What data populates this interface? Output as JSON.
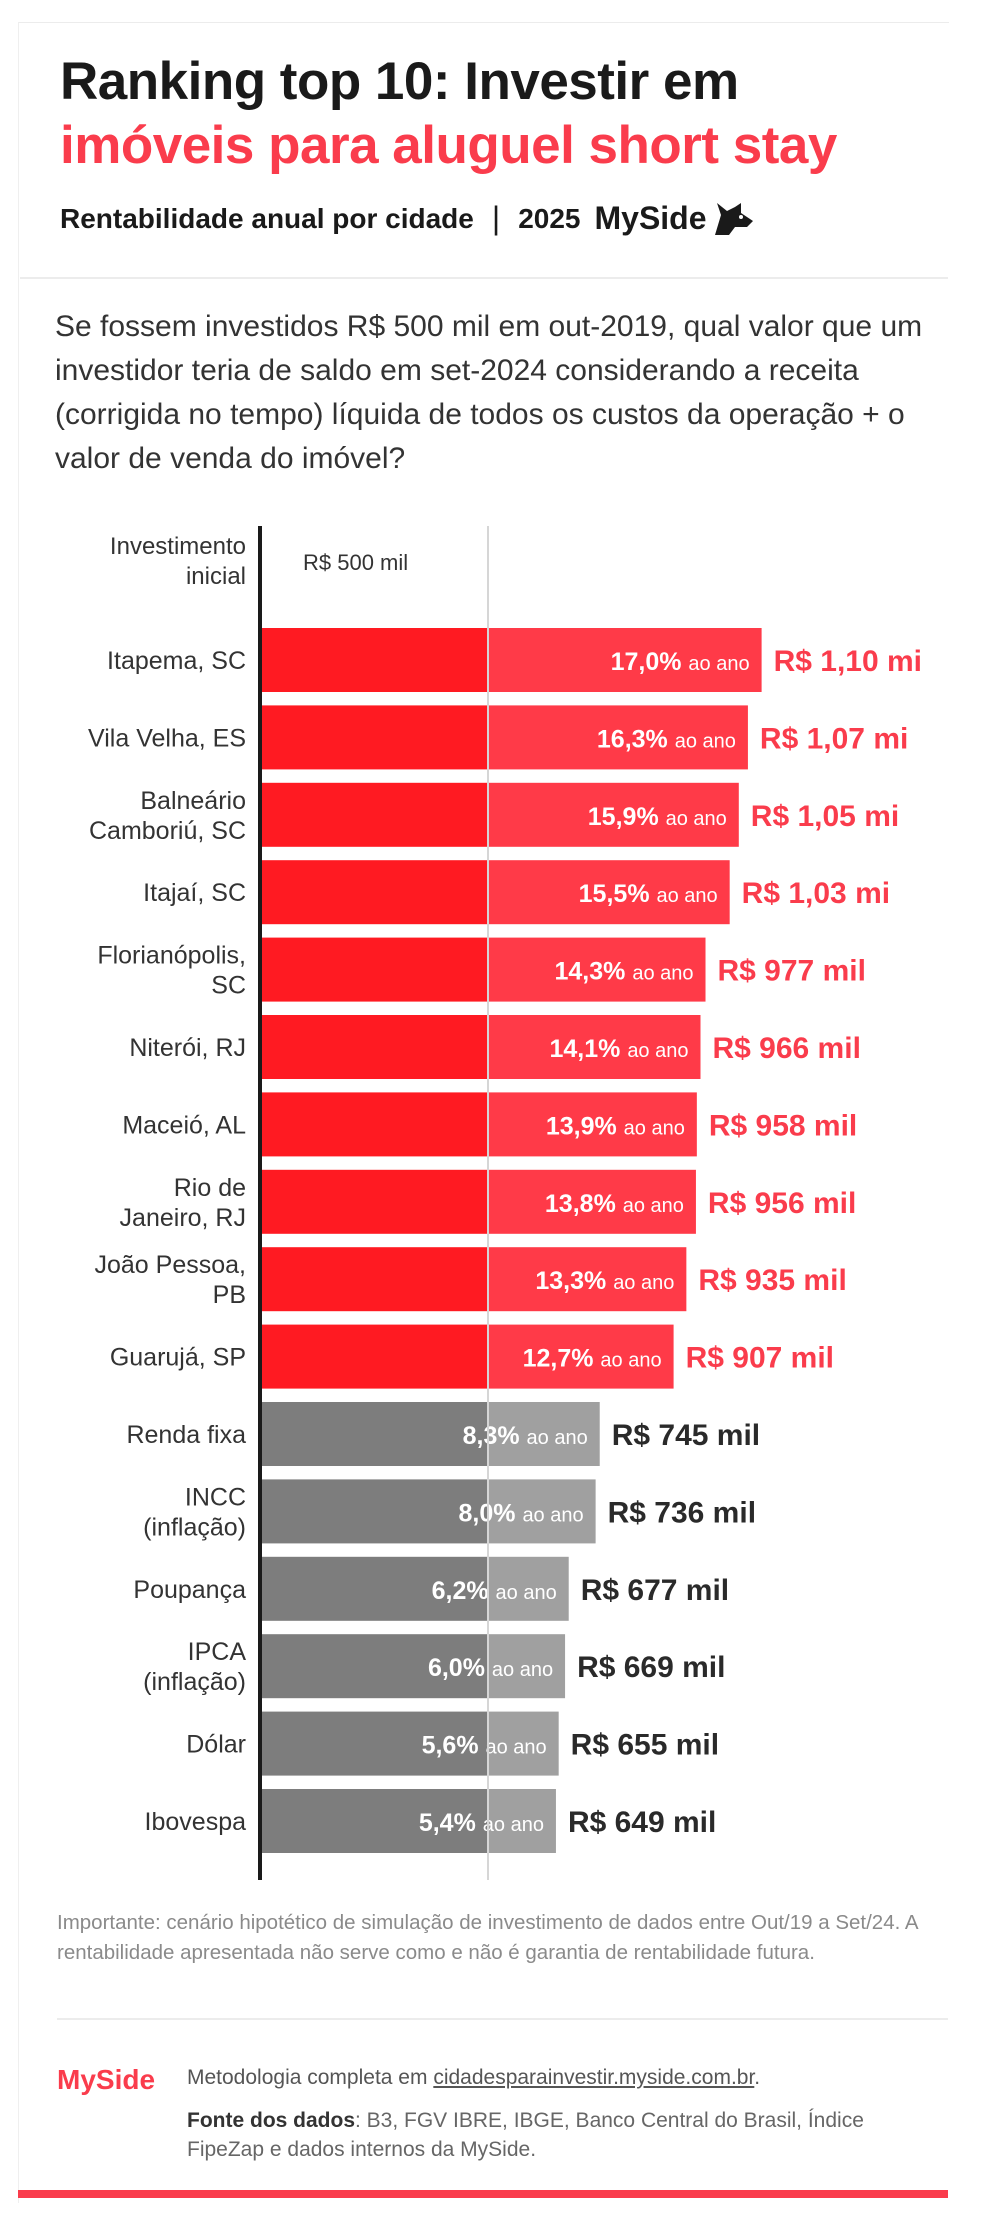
{
  "header": {
    "title_line1": "Ranking top 10: Investir em",
    "title_line2": "imóveis para aluguel short stay",
    "subtitle": "Rentabilidade anual por cidade",
    "year": "2025",
    "brand": "MySide"
  },
  "question": "Se fossem investidos R$ 500 mil em out-2019, qual valor que um investidor teria de saldo em set-2024 considerando a receita (corrigida no tempo) líquida de todos os custos da operação + o valor de venda do imóvel?",
  "colors": {
    "accent": "#fa3c4c",
    "city_bar": "#ff1a22",
    "city_bar_light": "#ff3a48",
    "benchmark_bar": "#7d7d7d",
    "benchmark_bar_light": "#a0a0a0",
    "axis": "#1a1a1a"
  },
  "chart_data": {
    "type": "bar",
    "orientation": "horizontal",
    "initial_investment": {
      "label": "Investimento inicial",
      "value_label": "R$ 500 mil",
      "value": 500
    },
    "unit_suffix": "ao ano",
    "categories": [
      "Itapema, SC",
      "Vila Velha, ES",
      "Balneário Camboriú, SC",
      "Itajaí, SC",
      "Florianópolis, SC",
      "Niterói, RJ",
      "Maceió, AL",
      "Rio de Janeiro, RJ",
      "João Pessoa, PB",
      "Guarujá, SP",
      "Renda fixa",
      "INCC (inflação)",
      "Poupança",
      "IPCA (inflação)",
      "Dólar",
      "Ibovespa"
    ],
    "label_lines": [
      [
        "Itapema, SC"
      ],
      [
        "Vila Velha, ES"
      ],
      [
        "Balneário",
        "Camboriú, SC"
      ],
      [
        "Itajaí, SC"
      ],
      [
        "Florianópolis,",
        "SC"
      ],
      [
        "Niterói, RJ"
      ],
      [
        "Maceió, AL"
      ],
      [
        "Rio de",
        "Janeiro, RJ"
      ],
      [
        "João Pessoa,",
        "PB"
      ],
      [
        "Guarujá, SP"
      ],
      [
        "Renda fixa"
      ],
      [
        "INCC",
        "(inflação)"
      ],
      [
        "Poupança"
      ],
      [
        "IPCA",
        "(inflação)"
      ],
      [
        "Dólar"
      ],
      [
        "Ibovespa"
      ]
    ],
    "values": [
      1100,
      1070,
      1050,
      1030,
      977,
      966,
      958,
      956,
      935,
      907,
      745,
      736,
      677,
      669,
      655,
      649
    ],
    "value_labels": [
      "R$ 1,10 mi",
      "R$ 1,07 mi",
      "R$ 1,05 mi",
      "R$ 1,03 mi",
      "R$ 977 mil",
      "R$ 966 mil",
      "R$ 958 mil",
      "R$ 956 mil",
      "R$ 935 mil",
      "R$ 907 mil",
      "R$ 745 mil",
      "R$ 736 mil",
      "R$ 677 mil",
      "R$ 669 mil",
      "R$ 655 mil",
      "R$ 649 mil"
    ],
    "rates": [
      "17,0%",
      "16,3%",
      "15,9%",
      "15,5%",
      "14,3%",
      "14,1%",
      "13,9%",
      "13,8%",
      "13,3%",
      "12,7%",
      "8,3%",
      "8,0%",
      "6,2%",
      "6,0%",
      "5,6%",
      "5,4%"
    ],
    "group": [
      "city",
      "city",
      "city",
      "city",
      "city",
      "city",
      "city",
      "city",
      "city",
      "city",
      "benchmark",
      "benchmark",
      "benchmark",
      "benchmark",
      "benchmark",
      "benchmark"
    ],
    "xlim": [
      0,
      1350
    ],
    "grid": false
  },
  "footer": {
    "note": "Importante: cenário hipotético de simulação de investimento de dados entre Out/19 a Set/24. A rentabilidade apresentada não serve como e não é garantia de rentabilidade futura.",
    "brand": "MySide",
    "method_prefix": "Metodologia completa em",
    "method_link": "cidadesparainvestir.myside.com.br",
    "method_suffix": ".",
    "sources_label": "Fonte dos dados",
    "sources_text": ": B3, FGV IBRE, IBGE, Banco Central do Brasil, Índice FipeZap e dados internos da MySide."
  }
}
